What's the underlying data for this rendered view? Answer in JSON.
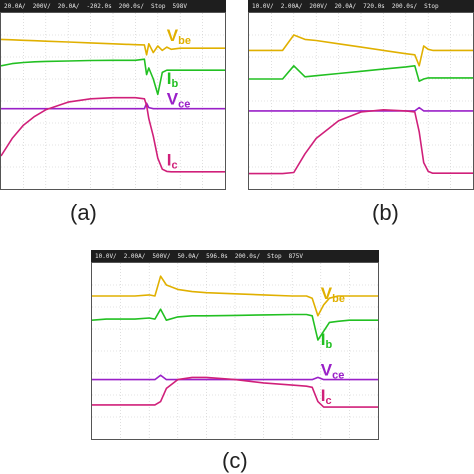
{
  "panels": [
    {
      "label": "(a)",
      "header": [
        "20.0A/",
        "200V/",
        "20.0A/",
        "-202.0s",
        "200.0s/",
        "Stop",
        "598V"
      ],
      "signals": [
        {
          "name": "V",
          "sub": "be",
          "color": "#e0b000"
        },
        {
          "name": "I",
          "sub": "b",
          "color": "#22c022"
        },
        {
          "name": "V",
          "sub": "ce",
          "color": "#9a20c8"
        },
        {
          "name": "I",
          "sub": "c",
          "color": "#d0207a"
        }
      ]
    },
    {
      "label": "(b)",
      "header": [
        "10.0V/",
        "2.00A/",
        "200V/",
        "20.0A/",
        "720.0s",
        "200.0s/",
        "Stop"
      ],
      "signals": []
    },
    {
      "label": "(c)",
      "header": [
        "10.0V/",
        "2.00A/",
        "500V/",
        "50.0A/",
        "596.0s",
        "200.0s/",
        "Stop",
        "875V"
      ],
      "signals": [
        {
          "name": "V",
          "sub": "be",
          "color": "#e0b000"
        },
        {
          "name": "I",
          "sub": "b",
          "color": "#22c022"
        },
        {
          "name": "V",
          "sub": "ce",
          "color": "#9a20c8"
        },
        {
          "name": "I",
          "sub": "c",
          "color": "#d0207a"
        }
      ]
    }
  ],
  "chart_data": [
    {
      "type": "line",
      "title": "(a)",
      "x_divisions": 10,
      "y_divisions": 8,
      "x": [
        0,
        0.5,
        1,
        1.5,
        2,
        3,
        4,
        5,
        6,
        6.4,
        6.5,
        6.6,
        6.8,
        7,
        7.2,
        7.4,
        7.6,
        8,
        8.5,
        9,
        10
      ],
      "series": [
        {
          "name": "Vbe",
          "values": [
            6.8,
            6.78,
            6.76,
            6.74,
            6.72,
            6.68,
            6.64,
            6.6,
            6.56,
            6.55,
            6.1,
            6.6,
            6.2,
            6.5,
            6.3,
            6.45,
            6.35,
            6.4,
            6.4,
            6.4,
            6.4
          ]
        },
        {
          "name": "Ib",
          "values": [
            5.6,
            5.7,
            5.75,
            5.78,
            5.8,
            5.82,
            5.84,
            5.85,
            5.85,
            5.9,
            5.2,
            5.5,
            5.0,
            4.3,
            5.3,
            5.4,
            5.4,
            5.4,
            5.4,
            5.4,
            5.4
          ]
        },
        {
          "name": "Vce",
          "values": [
            3.65,
            3.65,
            3.65,
            3.65,
            3.65,
            3.65,
            3.65,
            3.65,
            3.65,
            3.65,
            3.9,
            3.7,
            3.65,
            3.65,
            3.65,
            3.65,
            3.65,
            3.65,
            3.65,
            3.65,
            3.65
          ]
        },
        {
          "name": "Ic",
          "values": [
            1.5,
            2.3,
            2.9,
            3.3,
            3.6,
            3.95,
            4.1,
            4.15,
            4.15,
            4.1,
            3.8,
            3.2,
            2.4,
            1.4,
            0.9,
            0.8,
            0.78,
            0.78,
            0.78,
            0.78,
            0.78
          ]
        }
      ]
    },
    {
      "type": "line",
      "title": "(b)",
      "x_divisions": 10,
      "y_divisions": 8,
      "x": [
        0,
        0.5,
        1,
        1.5,
        2,
        2.5,
        3,
        4,
        5,
        6,
        7,
        7.4,
        7.6,
        7.8,
        8,
        8.2,
        8.5,
        9,
        10
      ],
      "series": [
        {
          "name": "Vbe",
          "values": [
            6.3,
            6.3,
            6.3,
            6.3,
            7.0,
            6.8,
            6.75,
            6.6,
            6.45,
            6.3,
            6.15,
            6.1,
            5.6,
            6.5,
            6.35,
            6.3,
            6.3,
            6.3,
            6.3
          ]
        },
        {
          "name": "Ib",
          "values": [
            5.0,
            5.0,
            5.0,
            5.0,
            5.6,
            5.1,
            5.15,
            5.25,
            5.35,
            5.45,
            5.55,
            5.6,
            4.9,
            5.0,
            5.05,
            5.05,
            5.05,
            5.05,
            5.05
          ]
        },
        {
          "name": "Vce",
          "values": [
            3.55,
            3.55,
            3.55,
            3.55,
            3.55,
            3.55,
            3.55,
            3.55,
            3.55,
            3.55,
            3.55,
            3.55,
            3.7,
            3.55,
            3.55,
            3.55,
            3.55,
            3.55,
            3.55
          ]
        },
        {
          "name": "Ic",
          "values": [
            0.7,
            0.7,
            0.7,
            0.7,
            0.75,
            1.6,
            2.3,
            3.1,
            3.5,
            3.6,
            3.55,
            3.5,
            2.6,
            1.2,
            0.8,
            0.72,
            0.72,
            0.72,
            0.72
          ]
        }
      ]
    },
    {
      "type": "line",
      "title": "(c)",
      "x_divisions": 10,
      "y_divisions": 8,
      "x": [
        0,
        0.5,
        1,
        1.5,
        2,
        2.2,
        2.4,
        2.6,
        3,
        3.5,
        4,
        5,
        6,
        7,
        7.5,
        7.7,
        7.9,
        8.1,
        8.3,
        8.6,
        9,
        10
      ],
      "series": [
        {
          "name": "Vbe",
          "values": [
            6.5,
            6.5,
            6.5,
            6.5,
            6.55,
            6.5,
            7.4,
            7.0,
            6.8,
            6.7,
            6.65,
            6.6,
            6.55,
            6.5,
            6.5,
            6.4,
            5.6,
            6.1,
            6.4,
            6.5,
            6.5,
            6.5
          ]
        },
        {
          "name": "Ib",
          "values": [
            5.4,
            5.45,
            5.45,
            5.45,
            5.5,
            5.45,
            5.9,
            5.4,
            5.55,
            5.6,
            5.6,
            5.62,
            5.64,
            5.66,
            5.66,
            5.6,
            4.5,
            4.9,
            5.3,
            5.35,
            5.4,
            5.4
          ]
        },
        {
          "name": "Vce",
          "values": [
            2.7,
            2.7,
            2.7,
            2.7,
            2.7,
            2.7,
            2.9,
            2.7,
            2.7,
            2.7,
            2.7,
            2.7,
            2.7,
            2.7,
            2.7,
            2.7,
            2.8,
            2.7,
            2.7,
            2.7,
            2.7,
            2.7
          ]
        },
        {
          "name": "Ic",
          "values": [
            1.55,
            1.55,
            1.55,
            1.55,
            1.55,
            1.55,
            1.7,
            2.3,
            2.7,
            2.8,
            2.8,
            2.7,
            2.55,
            2.45,
            2.4,
            2.35,
            1.7,
            1.45,
            1.45,
            1.45,
            1.45,
            1.45
          ]
        }
      ]
    }
  ]
}
